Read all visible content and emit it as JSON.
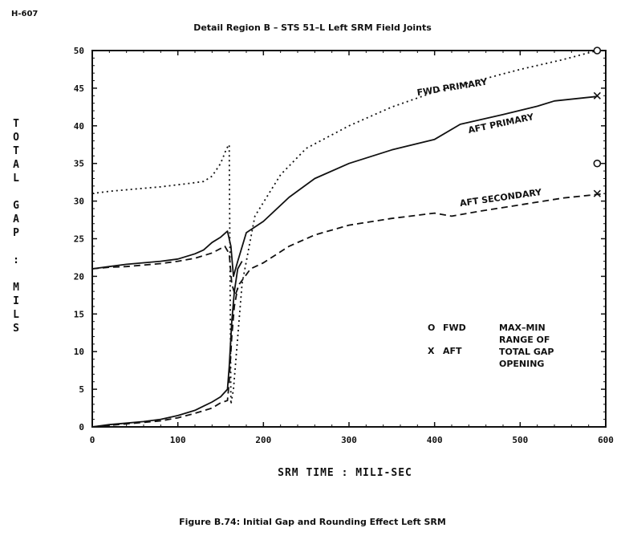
{
  "page_id": "H-607",
  "caption": "Figure B.74: Initial Gap and Rounding Effect Left SRM",
  "chart_data": {
    "type": "line",
    "title": "Detail Region B – STS 51–L Left SRM Field Joints",
    "xlabel": "SRM TIME : MILI-SEC",
    "ylabel": "TOTAL GAP : MILS",
    "xlim": [
      0,
      600
    ],
    "ylim": [
      0,
      50
    ],
    "xticks": [
      "0",
      "100",
      "200",
      "300",
      "400",
      "500",
      "600"
    ],
    "yticks": [
      "0",
      "5",
      "10",
      "15",
      "20",
      "25",
      "30",
      "35",
      "40",
      "45",
      "50"
    ],
    "grid": false,
    "series": [
      {
        "name": "FWD PRIMARY",
        "style": "dotted",
        "x": [
          0,
          20,
          50,
          80,
          110,
          130,
          140,
          150,
          157,
          160,
          162,
          165,
          175,
          190,
          220,
          250,
          300,
          350,
          400,
          450,
          500,
          550,
          590
        ],
        "y": [
          31,
          31.3,
          31.6,
          31.9,
          32.3,
          32.6,
          33.3,
          35,
          37,
          37.5,
          3,
          5,
          19,
          28,
          33.5,
          37,
          40,
          42.5,
          44.5,
          46,
          47.5,
          48.8,
          50
        ]
      },
      {
        "name": "AFT PRIMARY",
        "style": "solid",
        "x": [
          0,
          20,
          40,
          60,
          80,
          100,
          120,
          130,
          140,
          150,
          158,
          162,
          165,
          170,
          180,
          200,
          230,
          260,
          300,
          350,
          400,
          430,
          480,
          520,
          540,
          590
        ],
        "y": [
          21,
          21.3,
          21.6,
          21.8,
          22,
          22.3,
          23,
          23.5,
          24.5,
          25.2,
          26,
          24,
          20,
          22,
          25.8,
          27.3,
          30.5,
          33,
          35,
          36.8,
          38.2,
          40.2,
          41.5,
          42.6,
          43.3,
          43.9
        ]
      },
      {
        "name": "AFT SECONDARY",
        "style": "dashed",
        "x": [
          0,
          20,
          40,
          60,
          80,
          100,
          120,
          140,
          155,
          160,
          163,
          167,
          172,
          185,
          200,
          230,
          260,
          300,
          350,
          400,
          420,
          450,
          500,
          550,
          600
        ],
        "y": [
          21,
          21.2,
          21.3,
          21.5,
          21.7,
          22,
          22.4,
          23.1,
          24,
          23,
          19,
          17.5,
          19,
          21,
          21.8,
          24,
          25.5,
          26.8,
          27.7,
          28.4,
          28,
          28.6,
          29.5,
          30.4,
          31
        ]
      },
      {
        "name": "",
        "style": "solid",
        "x": [
          0,
          20,
          40,
          60,
          80,
          100,
          120,
          140,
          150,
          158,
          160,
          163,
          166,
          170,
          175
        ],
        "y": [
          0,
          0.3,
          0.5,
          0.7,
          1,
          1.5,
          2.2,
          3.3,
          4,
          5,
          8,
          14,
          18,
          21,
          22
        ]
      },
      {
        "name": "",
        "style": "dashed",
        "x": [
          0,
          20,
          40,
          60,
          80,
          100,
          120,
          140,
          150,
          158,
          160,
          163,
          166,
          170
        ],
        "y": [
          0,
          0.2,
          0.4,
          0.6,
          0.8,
          1.2,
          1.8,
          2.5,
          3.2,
          3.5,
          6,
          12,
          16,
          18.5
        ]
      }
    ],
    "markers": [
      {
        "symbol": "o",
        "x": 590,
        "y": 50
      },
      {
        "symbol": "o",
        "x": 590,
        "y": 35
      },
      {
        "symbol": "x",
        "x": 590,
        "y": 44
      },
      {
        "symbol": "x",
        "x": 590,
        "y": 31
      }
    ],
    "series_labels": [
      "FWD PRIMARY",
      "AFT PRIMARY",
      "AFT SECONDARY"
    ],
    "legend": {
      "placement": "lower-right",
      "items": [
        {
          "symbol": "O",
          "label": "FWD"
        },
        {
          "symbol": "X",
          "label": "AFT"
        }
      ],
      "note": [
        "MAX–MIN",
        "RANGE OF",
        "TOTAL GAP",
        "OPENING"
      ]
    }
  }
}
